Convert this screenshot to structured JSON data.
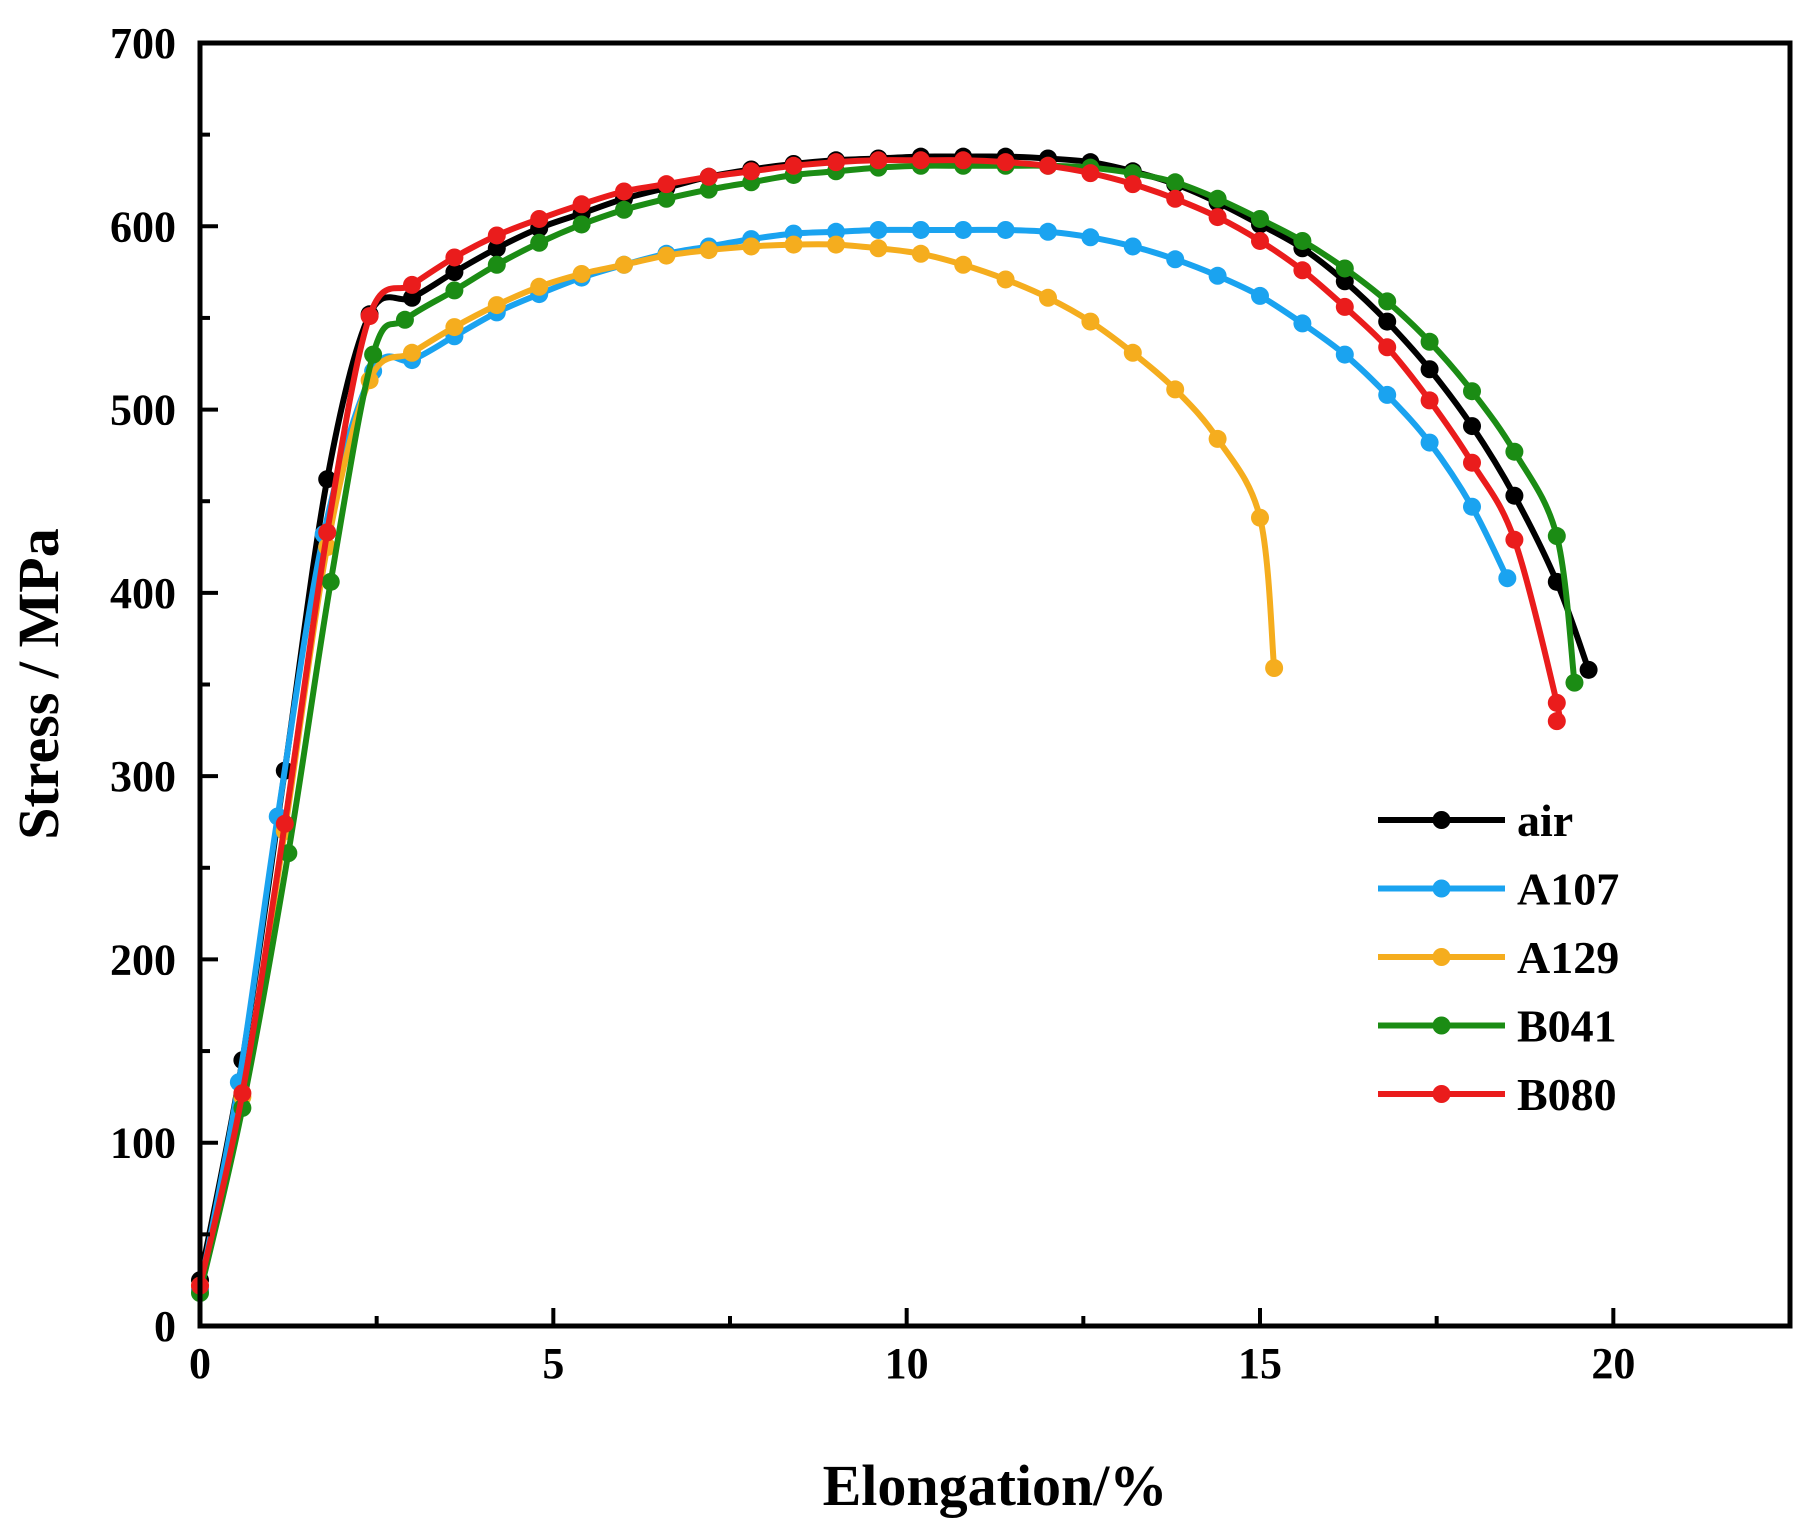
{
  "chart_data": {
    "type": "line",
    "title": "",
    "xlabel": "Elongation/%",
    "ylabel": "Stress / MPa",
    "xlim": [
      0,
      22.5
    ],
    "ylim": [
      0,
      700
    ],
    "x_ticks": [
      0,
      5,
      10,
      15,
      20
    ],
    "x_tick_labels": [
      "0",
      "5",
      "10",
      "15",
      "20"
    ],
    "y_ticks": [
      0,
      100,
      200,
      300,
      400,
      500,
      600,
      700
    ],
    "y_tick_labels": [
      "0",
      "100",
      "200",
      "300",
      "400",
      "500",
      "600",
      "700"
    ],
    "grid": false,
    "legend_position": "right-middle",
    "series": [
      {
        "name": "air",
        "color": "#000000",
        "x": [
          0,
          0.6,
          1.2,
          1.8,
          2.4,
          3.0,
          3.6,
          4.2,
          4.8,
          5.4,
          6.0,
          6.6,
          7.2,
          7.8,
          8.4,
          9.0,
          9.6,
          10.2,
          10.8,
          11.4,
          12.0,
          12.6,
          13.2,
          13.8,
          14.4,
          15.0,
          15.6,
          16.2,
          16.8,
          17.4,
          18.0,
          18.6,
          19.2,
          19.65
        ],
        "y": [
          25,
          145,
          303,
          462,
          552,
          561,
          575,
          588,
          599,
          607,
          615,
          621,
          627,
          631,
          634,
          636,
          637,
          638,
          638,
          638,
          637,
          635,
          630,
          623,
          613,
          601,
          588,
          570,
          548,
          522,
          491,
          453,
          406,
          358
        ]
      },
      {
        "name": "A107",
        "color": "#1aa3f0",
        "x": [
          0,
          0.55,
          1.1,
          1.75,
          2.45,
          3.0,
          3.6,
          4.2,
          4.8,
          5.4,
          6.0,
          6.6,
          7.2,
          7.8,
          8.4,
          9.0,
          9.6,
          10.2,
          10.8,
          11.4,
          12.0,
          12.6,
          13.2,
          13.8,
          14.4,
          15.0,
          15.6,
          16.2,
          16.8,
          17.4,
          18.0,
          18.5
        ],
        "y": [
          20,
          133,
          278,
          432,
          521,
          527,
          540,
          553,
          563,
          572,
          579,
          585,
          589,
          593,
          596,
          597,
          598,
          598,
          598,
          598,
          597,
          594,
          589,
          582,
          573,
          562,
          547,
          530,
          508,
          482,
          447,
          408
        ]
      },
      {
        "name": "A129",
        "color": "#f5ad1e",
        "x": [
          0,
          0.6,
          1.2,
          1.8,
          2.4,
          3.0,
          3.6,
          4.2,
          4.8,
          5.4,
          6.0,
          6.6,
          7.2,
          7.8,
          8.4,
          9.0,
          9.6,
          10.2,
          10.8,
          11.4,
          12.0,
          12.6,
          13.2,
          13.8,
          14.4,
          15.0,
          15.2
        ],
        "y": [
          22,
          125,
          270,
          425,
          516,
          531,
          545,
          557,
          567,
          574,
          579,
          584,
          587,
          589,
          590,
          590,
          588,
          585,
          579,
          571,
          561,
          548,
          531,
          511,
          484,
          441,
          359
        ]
      },
      {
        "name": "B041",
        "color": "#1b8c14",
        "x": [
          0,
          0.6,
          1.25,
          1.85,
          2.45,
          2.9,
          3.6,
          4.2,
          4.8,
          5.4,
          6.0,
          6.6,
          7.2,
          7.8,
          8.4,
          9.0,
          9.6,
          10.2,
          10.8,
          11.4,
          12.0,
          12.6,
          13.2,
          13.8,
          14.4,
          15.0,
          15.6,
          16.2,
          16.8,
          17.4,
          18.0,
          18.6,
          19.2,
          19.45
        ],
        "y": [
          18,
          119,
          258,
          406,
          530,
          549,
          565,
          579,
          591,
          601,
          609,
          615,
          620,
          624,
          628,
          630,
          632,
          633,
          633,
          633,
          633,
          632,
          629,
          624,
          615,
          604,
          592,
          577,
          559,
          537,
          510,
          477,
          431,
          351
        ]
      },
      {
        "name": "B080",
        "color": "#ea1c1c",
        "x": [
          0,
          0.6,
          1.2,
          1.8,
          2.4,
          3.0,
          3.6,
          4.2,
          4.8,
          5.4,
          6.0,
          6.6,
          7.2,
          7.8,
          8.4,
          9.0,
          9.6,
          10.2,
          10.8,
          11.4,
          12.0,
          12.6,
          13.2,
          13.8,
          14.4,
          15.0,
          15.6,
          16.2,
          16.8,
          17.4,
          18.0,
          18.6,
          19.2,
          19.2
        ],
        "y": [
          22,
          127,
          274,
          433,
          551,
          568,
          583,
          595,
          604,
          612,
          619,
          623,
          627,
          630,
          633,
          635,
          636,
          636,
          636,
          635,
          633,
          629,
          623,
          615,
          605,
          592,
          576,
          556,
          534,
          505,
          471,
          429,
          340,
          330
        ]
      }
    ]
  }
}
